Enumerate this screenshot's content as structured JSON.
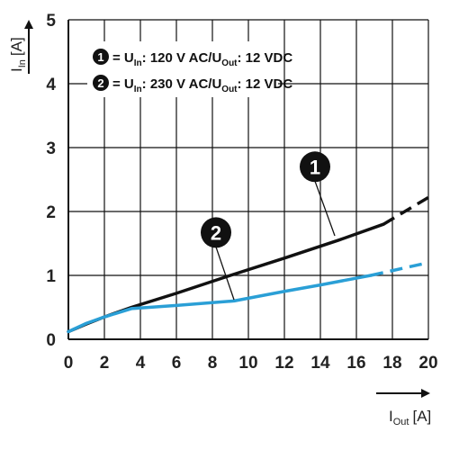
{
  "chart_data": {
    "type": "line",
    "xlim": [
      0,
      20
    ],
    "ylim": [
      0,
      5
    ],
    "x_ticks": [
      "0",
      "2",
      "4",
      "6",
      "8",
      "10",
      "12",
      "14",
      "16",
      "18",
      "20"
    ],
    "y_ticks": [
      "0",
      "1",
      "2",
      "3",
      "4",
      "5"
    ],
    "xlabel": {
      "main": "I",
      "sub": "Out",
      "unit": "[A]"
    },
    "ylabel": {
      "main": "I",
      "sub": "In",
      "unit": "[A]"
    },
    "grid": true,
    "legend_position": "top-left",
    "series": [
      {
        "name": "1",
        "color": "#111111",
        "legend": {
          "eq": "= U",
          "sub1": "In",
          "mid": ": 120 V AC/U",
          "sub2": "Out",
          "end": ": 12 VDC"
        },
        "solid": [
          [
            0,
            0.12
          ],
          [
            1,
            0.24
          ],
          [
            2,
            0.35
          ],
          [
            3.5,
            0.5
          ],
          [
            6,
            0.72
          ],
          [
            9,
            1.0
          ],
          [
            12,
            1.27
          ],
          [
            15,
            1.55
          ],
          [
            17.5,
            1.8
          ]
        ],
        "dashed": [
          [
            17.5,
            1.8
          ],
          [
            20,
            2.22
          ]
        ],
        "callout": {
          "label": "1",
          "at": [
            14.8,
            1.62
          ],
          "badge": [
            13.7,
            2.7
          ]
        }
      },
      {
        "name": "2",
        "color": "#2a9fd6",
        "legend": {
          "eq": "= U",
          "sub1": "In",
          "mid": ": 230 V AC/U",
          "sub2": "Out",
          "end": ": 12 VDC"
        },
        "solid": [
          [
            0,
            0.12
          ],
          [
            1,
            0.25
          ],
          [
            2,
            0.35
          ],
          [
            3.5,
            0.48
          ],
          [
            6,
            0.53
          ],
          [
            9.2,
            0.6
          ],
          [
            12,
            0.75
          ],
          [
            14,
            0.85
          ],
          [
            16.8,
            1.0
          ]
        ],
        "dashed": [
          [
            16.8,
            1.0
          ],
          [
            20,
            1.2
          ]
        ],
        "callout": {
          "label": "2",
          "at": [
            9.2,
            0.62
          ],
          "badge": [
            8.2,
            1.67
          ]
        }
      }
    ]
  }
}
